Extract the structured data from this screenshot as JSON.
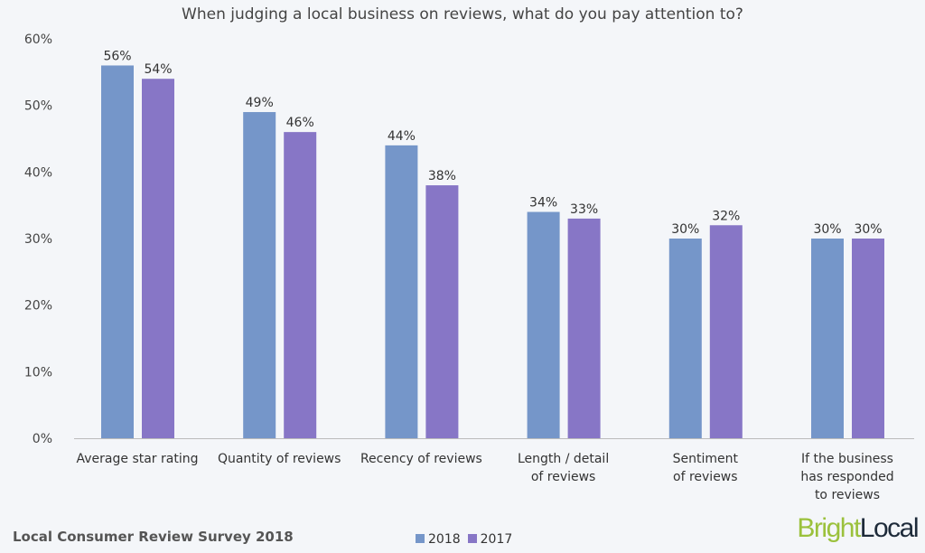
{
  "chart_data": {
    "type": "bar",
    "title": "When judging a local business on reviews, what do you pay attention to?",
    "categories": [
      "Average star rating",
      "Quantity of reviews",
      "Recency of reviews",
      "Length / detail\nof reviews",
      "Sentiment\nof reviews",
      "If the business\nhas responded\nto reviews"
    ],
    "series": [
      {
        "name": "2018",
        "color": "#7596c9",
        "values": [
          56,
          49,
          44,
          34,
          30,
          30
        ]
      },
      {
        "name": "2017",
        "color": "#8776c6",
        "values": [
          54,
          46,
          38,
          33,
          32,
          30
        ]
      }
    ],
    "yticks": [
      "0%",
      "10%",
      "20%",
      "30%",
      "40%",
      "50%",
      "60%"
    ],
    "ylim": [
      0,
      60
    ],
    "grid": false,
    "legend": "bottom-center",
    "value_suffix": "%"
  },
  "footer": {
    "source": "Local Consumer Review Survey 2018",
    "logo_part1": "Bright",
    "logo_part2": "Local"
  }
}
